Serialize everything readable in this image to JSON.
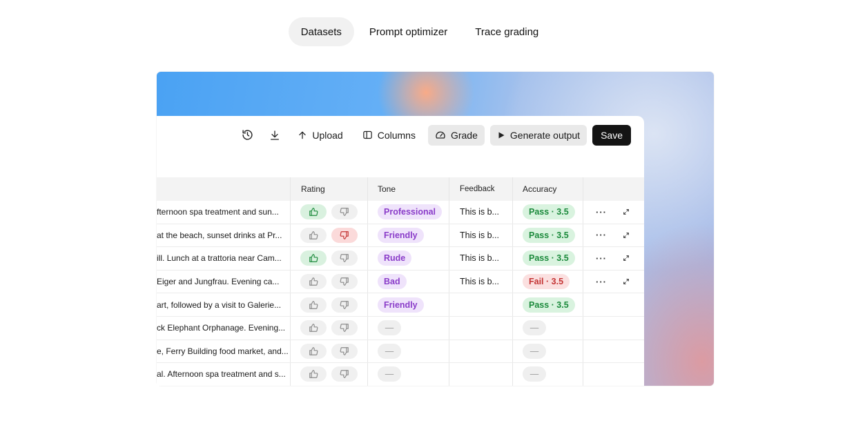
{
  "tabs": [
    {
      "label": "Datasets",
      "active": true
    },
    {
      "label": "Prompt optimizer",
      "active": false
    },
    {
      "label": "Trace grading",
      "active": false
    }
  ],
  "toolbar": {
    "upload_label": "Upload",
    "columns_label": "Columns",
    "grade_label": "Grade",
    "generate_label": "Generate output",
    "save_label": "Save"
  },
  "table": {
    "headers": {
      "rating": "Rating",
      "tone": "Tone",
      "feedback": "Feedback",
      "accuracy": "Accuracy"
    },
    "rows": [
      {
        "text": "fternoon spa treatment and sun...",
        "up": true,
        "down": false,
        "tone": "Professional",
        "feedback": "This is b...",
        "accuracy": "Pass · 3.5",
        "status": "pass",
        "actions": true
      },
      {
        "text": "at the beach, sunset drinks at Pr...",
        "up": false,
        "down": true,
        "tone": "Friendly",
        "feedback": "This is b...",
        "accuracy": "Pass · 3.5",
        "status": "pass",
        "actions": true
      },
      {
        "text": "ill. Lunch at a trattoria near Cam...",
        "up": true,
        "down": false,
        "tone": "Rude",
        "feedback": "This is b...",
        "accuracy": "Pass · 3.5",
        "status": "pass",
        "actions": true
      },
      {
        "text": " Eiger and Jungfrau. Evening ca...",
        "up": false,
        "down": false,
        "tone": "Bad",
        "feedback": "This is b...",
        "accuracy": "Fail · 3.5",
        "status": "fail",
        "actions": true
      },
      {
        "text": "art, followed by a visit to Galerie...",
        "up": false,
        "down": false,
        "tone": "Friendly",
        "feedback": "",
        "accuracy": "Pass · 3.5",
        "status": "pass",
        "actions": false
      },
      {
        "text": "ck Elephant Orphanage. Evening...",
        "up": false,
        "down": false,
        "tone": "—",
        "feedback": "",
        "accuracy": "—",
        "status": "empty",
        "actions": false
      },
      {
        "text": "e, Ferry Building food market, and...",
        "up": false,
        "down": false,
        "tone": "—",
        "feedback": "",
        "accuracy": "—",
        "status": "empty",
        "actions": false
      },
      {
        "text": "al. Afternoon spa treatment and s...",
        "up": false,
        "down": false,
        "tone": "—",
        "feedback": "",
        "accuracy": "—",
        "status": "empty",
        "actions": false
      }
    ]
  },
  "colors": {
    "accent_green": "#1c8a3c",
    "accent_red": "#c43434",
    "accent_purple": "#8a3cc9",
    "save_bg": "#141414"
  }
}
